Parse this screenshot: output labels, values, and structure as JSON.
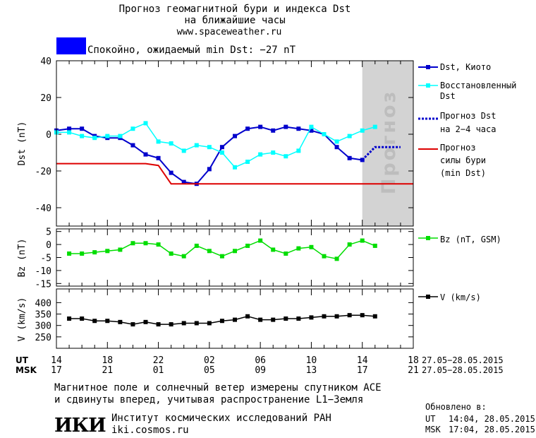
{
  "header": {
    "title_line1": "Прогноз геомагнитной бури и индекса Dst",
    "title_line2": "на ближайшие часы",
    "website": "www.spaceweather.ru",
    "status_color": "#0000ff",
    "status_text": "Спокойно, ожидаемый min Dst: −27 nT"
  },
  "chart_data": [
    {
      "type": "line",
      "ylabel": "Dst (nT)",
      "ylim": [
        -50,
        40
      ],
      "yticks": [
        40,
        20,
        0,
        -20,
        -40
      ],
      "forecast_zone_label": "Прогноз",
      "forecast_zone_color": "#d3d3d3",
      "series": [
        {
          "name": "Dst, Киото",
          "color": "#0000cc",
          "x": [
            14,
            15,
            16,
            17,
            18,
            19,
            20,
            21,
            22,
            23,
            24,
            25,
            26,
            27,
            28,
            29,
            30,
            31,
            32,
            33,
            34,
            35,
            36,
            37,
            38
          ],
          "values": [
            2,
            3,
            3,
            -1,
            -2,
            -2,
            -6,
            -11,
            -13,
            -21,
            -26,
            -27,
            -19,
            -7,
            -1,
            3,
            4,
            2,
            4,
            3,
            2,
            0,
            -7,
            -13,
            -14
          ]
        },
        {
          "name": "Восстановленный Dst",
          "color": "#00ffff",
          "x": [
            14,
            15,
            16,
            17,
            18,
            19,
            20,
            21,
            22,
            23,
            24,
            25,
            26,
            27,
            28,
            29,
            30,
            31,
            32,
            33,
            34,
            35,
            36,
            37,
            38,
            39
          ],
          "values": [
            1,
            1,
            -1,
            -2,
            -1,
            -1,
            3,
            6,
            -4,
            -5,
            -9,
            -6,
            -7,
            -10,
            -18,
            -15,
            -11,
            -10,
            -12,
            -9,
            4,
            0,
            -4,
            -1,
            2,
            4
          ]
        },
        {
          "name": "Прогноз Dst на 2-4 часа",
          "color": "#0000cc",
          "x": [
            38,
            39,
            40,
            41
          ],
          "values": [
            -14,
            -7,
            -7,
            -7
          ]
        },
        {
          "name": "Прогноз силы бури (min Dst)",
          "color": "#dd0000",
          "x": [
            14,
            21,
            22,
            23,
            42
          ],
          "values": [
            -16,
            -16,
            -17,
            -27,
            -27
          ]
        }
      ]
    },
    {
      "type": "line",
      "ylabel": "Bz (nT)",
      "ylim": [
        -16,
        6
      ],
      "yticks": [
        5,
        0,
        -5,
        -10,
        -15
      ],
      "series": [
        {
          "name": "Bz (nT, GSM)",
          "color": "#00dd00",
          "x": [
            15,
            16,
            17,
            18,
            19,
            20,
            21,
            22,
            23,
            24,
            25,
            26,
            27,
            28,
            29,
            30,
            31,
            32,
            33,
            34,
            35,
            36,
            37,
            38,
            39
          ],
          "values": [
            -3.5,
            -3.5,
            -3,
            -2.5,
            -2,
            0.5,
            0.5,
            0,
            -3.5,
            -4.5,
            -0.5,
            -2.5,
            -4.5,
            -2.5,
            -0.5,
            1.5,
            -2,
            -3.5,
            -1.5,
            -1,
            -4.5,
            -5.5,
            0,
            1.5,
            -0.5
          ]
        }
      ]
    },
    {
      "type": "line",
      "ylabel": "V (km/s)",
      "ylim": [
        200,
        460
      ],
      "yticks": [
        400,
        350,
        300,
        250
      ],
      "series": [
        {
          "name": "V (km/s)",
          "color": "#000000",
          "x": [
            15,
            16,
            17,
            18,
            19,
            20,
            21,
            22,
            23,
            24,
            25,
            26,
            27,
            28,
            29,
            30,
            31,
            32,
            33,
            34,
            35,
            36,
            37,
            38,
            39
          ],
          "values": [
            330,
            330,
            320,
            320,
            315,
            305,
            315,
            305,
            305,
            310,
            310,
            310,
            320,
            325,
            340,
            325,
            325,
            330,
            330,
            335,
            340,
            340,
            345,
            345,
            340
          ]
        }
      ]
    }
  ],
  "x_axis": {
    "ut_label": "UT",
    "msk_label": "MSK",
    "ut_ticks": [
      "14",
      "18",
      "22",
      "02",
      "06",
      "10",
      "14",
      "18"
    ],
    "msk_ticks": [
      "17",
      "21",
      "01",
      "05",
      "09",
      "13",
      "17",
      "21"
    ],
    "ut_date_range": "27.05−28.05.2015",
    "msk_date_range": "27.05−28.05.2015",
    "xlim": [
      14,
      42
    ]
  },
  "legend": {
    "dst_kyoto": "Dst, Киото",
    "restored_line1": "Восстановленный",
    "restored_line2": "Dst",
    "forecast_line1": "Прогноз Dst",
    "forecast_line2": "на 2−4 часа",
    "storm_line1": "Прогноз",
    "storm_line2": "силы бури",
    "storm_line3": "(min Dst)",
    "bz": "Bz (nT, GSM)",
    "v": "V (km/s)"
  },
  "footer": {
    "note_line1": "Магнитное поле и солнечный ветер измерены спутником ACE",
    "note_line2": "и сдвинуты вперед, учитывая распространение L1−Земля",
    "logo_text": "ИКИ",
    "institute_name": "Институт космических исследований РАН",
    "institute_site": "iki.cosmos.ru",
    "updated_label": "Обновлено в:",
    "updated_ut_label": "UT",
    "updated_ut": "14:04, 28.05.2015",
    "updated_msk_label": "MSK",
    "updated_msk": "17:04, 28.05.2015"
  }
}
